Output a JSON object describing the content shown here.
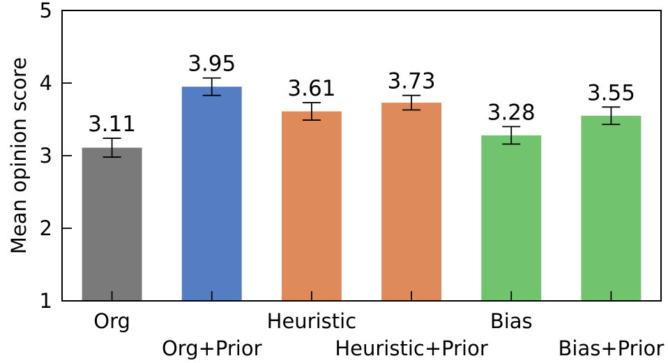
{
  "chart_data": {
    "type": "bar",
    "categories": [
      "Org",
      "Org+Prior",
      "Heuristic",
      "Heuristic+Prior",
      "Bias",
      "Bias+Prior"
    ],
    "values": [
      3.11,
      3.95,
      3.61,
      3.73,
      3.28,
      3.55
    ],
    "error": [
      0.13,
      0.12,
      0.12,
      0.1,
      0.12,
      0.12
    ],
    "data_labels": [
      "3.11",
      "3.95",
      "3.61",
      "3.73",
      "3.28",
      "3.55"
    ],
    "colors": [
      "#7a7a7a",
      "#547dc3",
      "#df8a5a",
      "#df8a5a",
      "#72c36d",
      "#72c36d"
    ],
    "ylabel": "Mean opinion score",
    "ylim": [
      1,
      5
    ],
    "yticks": [
      1,
      2,
      3,
      4,
      5
    ],
    "ytick_labels": [
      "1",
      "2",
      "3",
      "4",
      "5"
    ],
    "grid": false,
    "legend": "none"
  }
}
